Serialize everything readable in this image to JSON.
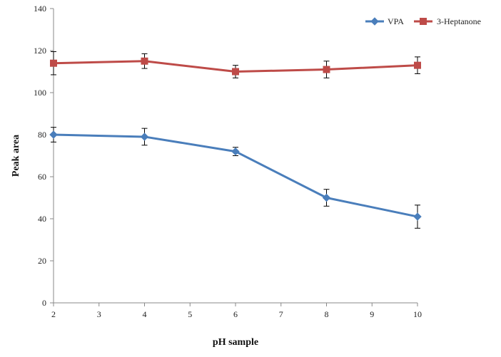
{
  "chart_data": {
    "type": "line",
    "title": "",
    "xlabel": "pH sample",
    "ylabel": "Peak area",
    "xlim": [
      2,
      10
    ],
    "ylim": [
      0,
      140
    ],
    "x_ticks": [
      2,
      3,
      4,
      5,
      6,
      7,
      8,
      9,
      10
    ],
    "y_ticks": [
      0,
      20,
      40,
      60,
      80,
      100,
      120,
      140
    ],
    "grid": false,
    "legend_position": "top-right",
    "x": [
      2,
      4,
      6,
      8,
      10
    ],
    "series": [
      {
        "name": "VPA",
        "color": "#4a7ebb",
        "marker": "diamond",
        "values": [
          80,
          79,
          72,
          50,
          41
        ],
        "errors": [
          3.5,
          4,
          2,
          4,
          5.5
        ]
      },
      {
        "name": "3-Heptanone",
        "color": "#be4b48",
        "marker": "square",
        "values": [
          114,
          115,
          110,
          111,
          113
        ],
        "errors": [
          5.5,
          3.5,
          3,
          4,
          4
        ]
      }
    ]
  }
}
